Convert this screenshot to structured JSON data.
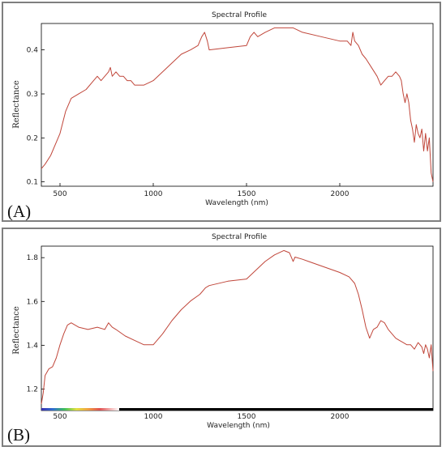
{
  "chart_data": [
    {
      "type": "line",
      "panel_label": "(A)",
      "title": "Spectral Profile",
      "xlabel": "Wavelength (nm)",
      "ylabel": "Reflectance",
      "xlim": [
        400,
        2500
      ],
      "ylim": [
        0.09,
        0.46
      ],
      "xticks": [
        500,
        1000,
        1500,
        2000
      ],
      "yticks": [
        0.1,
        0.2,
        0.3,
        0.4
      ],
      "ytick_labels": [
        "0.1",
        "0.2",
        "0.3",
        "0.4"
      ],
      "xtick_labels": [
        "500",
        "1000",
        "1500",
        "2000"
      ],
      "grid": false,
      "color": "#c0463a",
      "series": [
        {
          "x": [
            400,
            420,
            450,
            480,
            500,
            530,
            560,
            600,
            640,
            680,
            700,
            720,
            740,
            760,
            770,
            780,
            800,
            820,
            840,
            860,
            880,
            900,
            950,
            1000,
            1050,
            1100,
            1150,
            1200,
            1240,
            1260,
            1275,
            1290,
            1300,
            1400,
            1500,
            1520,
            1540,
            1560,
            1600,
            1650,
            1700,
            1750,
            1800,
            1900,
            2000,
            2040,
            2060,
            2070,
            2080,
            2100,
            2120,
            2140,
            2170,
            2200,
            2220,
            2240,
            2260,
            2280,
            2300,
            2320,
            2330,
            2340,
            2350,
            2360,
            2370,
            2380,
            2390,
            2400,
            2410,
            2420,
            2430,
            2440,
            2450,
            2460,
            2470,
            2480,
            2490,
            2500
          ],
          "y": [
            0.13,
            0.14,
            0.16,
            0.19,
            0.21,
            0.26,
            0.29,
            0.3,
            0.31,
            0.33,
            0.34,
            0.33,
            0.34,
            0.35,
            0.36,
            0.34,
            0.35,
            0.34,
            0.34,
            0.33,
            0.33,
            0.32,
            0.32,
            0.33,
            0.35,
            0.37,
            0.39,
            0.4,
            0.41,
            0.43,
            0.44,
            0.42,
            0.4,
            0.405,
            0.41,
            0.43,
            0.44,
            0.43,
            0.44,
            0.45,
            0.45,
            0.45,
            0.44,
            0.43,
            0.42,
            0.42,
            0.41,
            0.44,
            0.42,
            0.41,
            0.39,
            0.38,
            0.36,
            0.34,
            0.32,
            0.33,
            0.34,
            0.34,
            0.35,
            0.34,
            0.33,
            0.3,
            0.28,
            0.3,
            0.28,
            0.24,
            0.22,
            0.19,
            0.23,
            0.21,
            0.2,
            0.22,
            0.17,
            0.21,
            0.17,
            0.2,
            0.12,
            0.1
          ]
        }
      ]
    },
    {
      "type": "line",
      "panel_label": "(B)",
      "title": "Spectral Profile",
      "xlabel": "Wavelength (nm)",
      "ylabel": "Reflectance",
      "xlim": [
        400,
        2500
      ],
      "ylim": [
        1.12,
        1.87
      ],
      "xticks": [
        500,
        1000,
        1500,
        2000
      ],
      "yticks": [
        1.2,
        1.4,
        1.6,
        1.8
      ],
      "ytick_labels": [
        "1.2",
        "1.4",
        "1.6",
        "1.8"
      ],
      "xtick_labels": [
        "500",
        "1000",
        "1500",
        "2000"
      ],
      "grid": false,
      "color": "#c0463a",
      "series": [
        {
          "x": [
            400,
            410,
            420,
            440,
            460,
            480,
            500,
            520,
            540,
            560,
            600,
            650,
            700,
            740,
            760,
            780,
            800,
            850,
            900,
            950,
            1000,
            1020,
            1050,
            1100,
            1150,
            1200,
            1250,
            1280,
            1300,
            1400,
            1500,
            1550,
            1600,
            1650,
            1700,
            1730,
            1750,
            1760,
            1800,
            1900,
            2000,
            2050,
            2080,
            2100,
            2120,
            2140,
            2160,
            2180,
            2200,
            2220,
            2240,
            2260,
            2280,
            2300,
            2320,
            2340,
            2360,
            2380,
            2400,
            2420,
            2440,
            2450,
            2460,
            2470,
            2480,
            2490,
            2500
          ],
          "y": [
            1.15,
            1.2,
            1.28,
            1.31,
            1.32,
            1.36,
            1.42,
            1.47,
            1.51,
            1.52,
            1.5,
            1.49,
            1.5,
            1.49,
            1.52,
            1.5,
            1.49,
            1.46,
            1.44,
            1.42,
            1.42,
            1.44,
            1.47,
            1.53,
            1.58,
            1.62,
            1.65,
            1.68,
            1.69,
            1.71,
            1.72,
            1.76,
            1.8,
            1.83,
            1.85,
            1.84,
            1.8,
            1.82,
            1.81,
            1.78,
            1.75,
            1.73,
            1.7,
            1.65,
            1.58,
            1.5,
            1.45,
            1.49,
            1.5,
            1.53,
            1.52,
            1.49,
            1.47,
            1.45,
            1.44,
            1.43,
            1.42,
            1.42,
            1.4,
            1.43,
            1.41,
            1.38,
            1.42,
            1.4,
            1.36,
            1.42,
            1.3
          ]
        }
      ]
    }
  ]
}
